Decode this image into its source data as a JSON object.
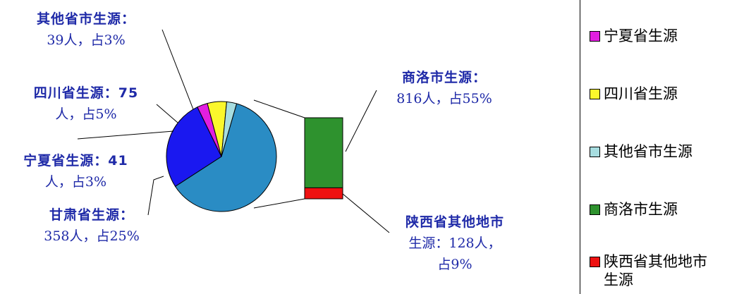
{
  "chart_data": {
    "type": "pie",
    "slices": [
      {
        "name": "商洛市生源",
        "count": 816,
        "percent": 55,
        "color": "#2a8cc4"
      },
      {
        "name": "甘肃省生源",
        "count": 358,
        "percent": 25,
        "color": "#1a18f0"
      },
      {
        "name": "宁夏省生源",
        "count": 41,
        "percent": 3,
        "color": "#e21ee0"
      },
      {
        "name": "四川省生源",
        "count": 75,
        "percent": 5,
        "color": "#fbf72c"
      },
      {
        "name": "其他省市生源",
        "count": 39,
        "percent": 3,
        "color": "#a7dde0"
      }
    ],
    "breakdown_bar": [
      {
        "name": "商洛市生源",
        "count": 816,
        "percent": 55,
        "color": "#2e922e"
      },
      {
        "name": "陕西省其他地市生源",
        "count": 128,
        "percent": 9,
        "color": "#ee1111"
      }
    ],
    "labels": {
      "qita_a": "其他省市生源：",
      "qita_b": "39人，占3%",
      "sichuan_a": "四川省生源：75",
      "sichuan_b": "人，占5%",
      "ningxia_a": "宁夏省生源：41",
      "ningxia_b": "人，占3%",
      "gansu_a": "甘肃省生源：",
      "gansu_b": "358人，占25%",
      "shangluo_a": "商洛市生源：",
      "shangluo_b": "816人，占55%",
      "shaanxi_a": "陕西省其他地市",
      "shaanxi_b": "生源：128人，",
      "shaanxi_c": "占9%"
    },
    "legend": [
      {
        "label": "宁夏省生源",
        "color": "#e21ee0"
      },
      {
        "label": "四川省生源",
        "color": "#fbf72c"
      },
      {
        "label": "其他省市生源",
        "color": "#a7dde0"
      },
      {
        "label": "商洛市生源",
        "color": "#2e922e"
      },
      {
        "label": "陕西省其他地市生源",
        "color": "#ee1111"
      }
    ]
  }
}
